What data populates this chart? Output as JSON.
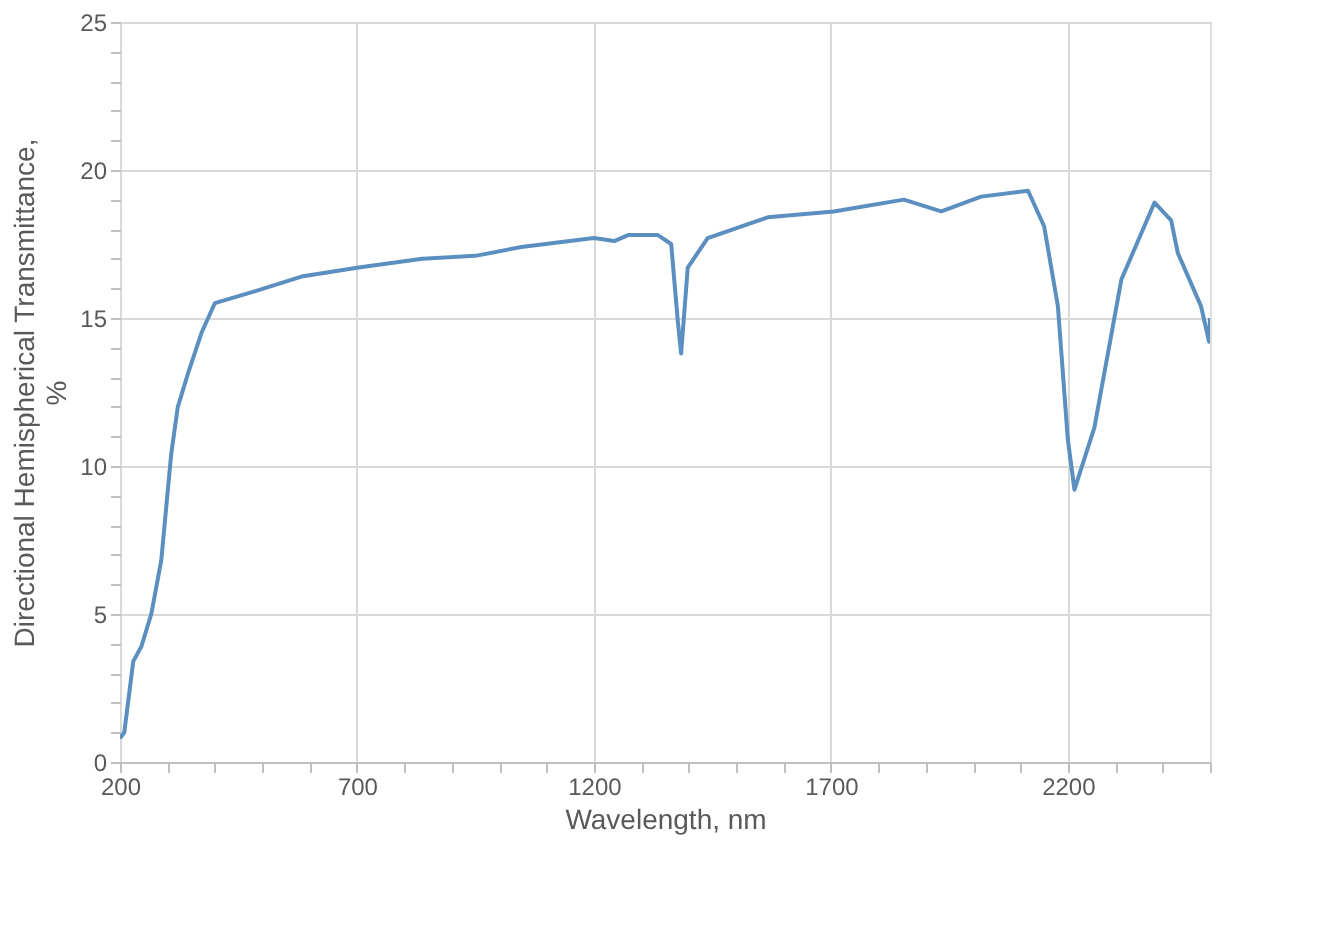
{
  "chart_data": {
    "type": "line",
    "xlabel": "Wavelength, nm",
    "ylabel": "Directional Hemispherical Transmittance, %",
    "x": [
      200,
      209,
      228,
      245,
      266,
      287,
      308,
      322,
      343,
      372,
      400,
      484,
      583,
      700,
      838,
      950,
      1047,
      1200,
      1243,
      1272,
      1335,
      1363,
      1377,
      1384,
      1398,
      1440,
      1567,
      1706,
      1854,
      1933,
      2017,
      2116,
      2150,
      2179,
      2200,
      2214,
      2256,
      2313,
      2383,
      2418,
      2432,
      2481,
      2498,
      2500
    ],
    "series": [
      {
        "color": "#5b8fbf",
        "values": [
          0.8,
          1.0,
          3.4,
          3.9,
          5.0,
          6.8,
          10.4,
          12.0,
          13.1,
          14.5,
          15.5,
          15.9,
          16.4,
          16.7,
          17.0,
          17.1,
          17.4,
          17.7,
          17.6,
          17.8,
          17.8,
          17.5,
          14.9,
          13.8,
          16.7,
          17.7,
          18.4,
          18.6,
          19.0,
          18.6,
          19.1,
          19.3,
          18.1,
          15.4,
          10.9,
          9.2,
          11.3,
          16.3,
          18.9,
          18.3,
          17.2,
          15.4,
          14.2,
          15.0
        ]
      }
    ],
    "xlim": [
      200,
      2500
    ],
    "xticks": [
      200,
      {
        "value": 300,
        "label": null
      },
      {
        "value": 400,
        "label": null
      },
      {
        "value": 500,
        "label": null
      },
      {
        "value": 600,
        "label": null
      },
      700,
      {
        "value": 800,
        "label": null
      },
      {
        "value": 900,
        "label": null
      },
      {
        "value": 1000,
        "label": null
      },
      {
        "value": 1100,
        "label": null
      },
      1200,
      {
        "value": 1300,
        "label": null
      },
      {
        "value": 1400,
        "label": null
      },
      {
        "value": 1500,
        "label": null
      },
      {
        "value": 1600,
        "label": null
      },
      1700,
      {
        "value": 1800,
        "label": null
      },
      {
        "value": 1900,
        "label": null
      },
      {
        "value": 2000,
        "label": null
      },
      {
        "value": 2100,
        "label": null
      },
      2200,
      {
        "value": 2300,
        "label": null
      },
      {
        "value": 2400,
        "label": null
      },
      {
        "value": 2500,
        "label": null
      }
    ],
    "ylim": [
      0,
      25
    ],
    "yticks": [
      0,
      {
        "value": 1,
        "label": null
      },
      {
        "value": 2,
        "label": null
      },
      {
        "value": 3,
        "label": null
      },
      {
        "value": 4,
        "label": null
      },
      5,
      {
        "value": 6,
        "label": null
      },
      {
        "value": 7,
        "label": null
      },
      {
        "value": 8,
        "label": null
      },
      {
        "value": 9,
        "label": null
      },
      10,
      {
        "value": 11,
        "label": null
      },
      {
        "value": 12,
        "label": null
      },
      {
        "value": 13,
        "label": null
      },
      {
        "value": 14,
        "label": null
      },
      15,
      {
        "value": 16,
        "label": null
      },
      {
        "value": 17,
        "label": null
      },
      {
        "value": 18,
        "label": null
      },
      {
        "value": 19,
        "label": null
      },
      20,
      {
        "value": 21,
        "label": null
      },
      {
        "value": 22,
        "label": null
      },
      {
        "value": 23,
        "label": null
      },
      {
        "value": 24,
        "label": null
      },
      25
    ],
    "grid": true,
    "marker": "none",
    "line_style": "solid"
  }
}
